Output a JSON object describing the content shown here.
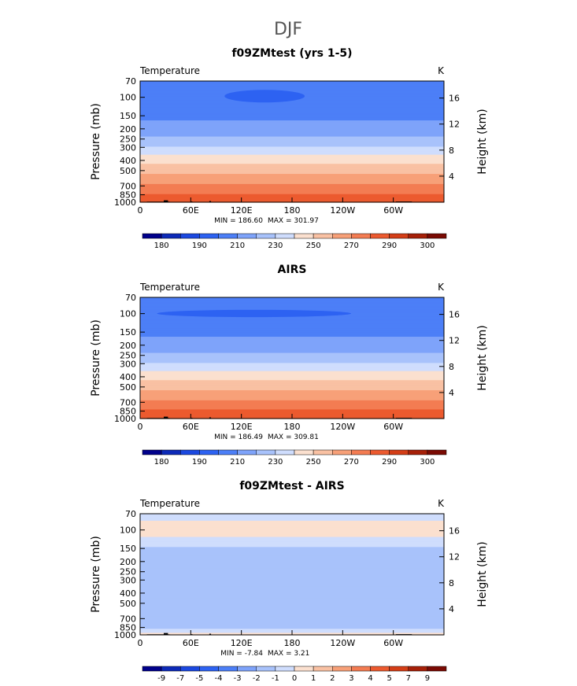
{
  "figure": {
    "title": "DJF"
  },
  "axes": {
    "y_left_label": "Pressure (mb)",
    "y_right_label": "Height (km)",
    "pressure_ticks": [
      "70",
      "100",
      "150",
      "200",
      "250",
      "300",
      "400",
      "500",
      "700",
      "850",
      "1000"
    ],
    "pressure_values": [
      70,
      100,
      150,
      200,
      250,
      300,
      400,
      500,
      700,
      850,
      1000
    ],
    "height_ticks": [
      "16",
      "12",
      "8",
      "4"
    ],
    "height_values": [
      16,
      12,
      8,
      4
    ],
    "lon_ticks": [
      "0",
      "60E",
      "120E",
      "180",
      "120W",
      "60W"
    ],
    "lon_values": [
      0,
      60,
      120,
      180,
      240,
      300
    ],
    "xlim": [
      0,
      360
    ]
  },
  "chart_data": [
    {
      "type": "contour",
      "title": "f09ZMtest (yrs 1-5)",
      "variable": "Temperature",
      "units": "K",
      "min_label": "MIN = 186.60",
      "max_label": "MAX = 301.97",
      "min": 186.6,
      "max": 301.97,
      "levels": [
        180,
        185,
        190,
        200,
        210,
        220,
        230,
        240,
        250,
        260,
        270,
        280,
        290,
        295,
        300
      ],
      "colorbar_labels": [
        "180",
        "190",
        "210",
        "230",
        "250",
        "270",
        "290",
        "300"
      ],
      "profile": [
        {
          "p": 70,
          "t": 205
        },
        {
          "p": 100,
          "t": 203
        },
        {
          "p": 150,
          "t": 208
        },
        {
          "p": 200,
          "t": 214
        },
        {
          "p": 250,
          "t": 222
        },
        {
          "p": 300,
          "t": 231
        },
        {
          "p": 400,
          "t": 246
        },
        {
          "p": 500,
          "t": 257
        },
        {
          "p": 700,
          "t": 272
        },
        {
          "p": 850,
          "t": 281
        },
        {
          "p": 1000,
          "t": 289
        }
      ],
      "cold_pool": {
        "lon_start": 100,
        "lon_end": 195,
        "p_top": 85,
        "p_bottom": 112,
        "t": 193
      }
    },
    {
      "type": "contour",
      "title": "AIRS",
      "variable": "Temperature",
      "units": "K",
      "min_label": "MIN = 186.49",
      "max_label": "MAX = 309.81",
      "min": 186.49,
      "max": 309.81,
      "levels": [
        180,
        185,
        190,
        200,
        210,
        220,
        230,
        240,
        250,
        260,
        270,
        280,
        290,
        295,
        300
      ],
      "colorbar_labels": [
        "180",
        "190",
        "210",
        "230",
        "250",
        "270",
        "290",
        "300"
      ],
      "profile": [
        {
          "p": 70,
          "t": 205
        },
        {
          "p": 100,
          "t": 202
        },
        {
          "p": 150,
          "t": 208
        },
        {
          "p": 200,
          "t": 214
        },
        {
          "p": 250,
          "t": 222
        },
        {
          "p": 300,
          "t": 231
        },
        {
          "p": 400,
          "t": 246
        },
        {
          "p": 500,
          "t": 257
        },
        {
          "p": 700,
          "t": 272
        },
        {
          "p": 850,
          "t": 282
        },
        {
          "p": 1000,
          "t": 290
        }
      ],
      "cold_pool": {
        "lon_start": 20,
        "lon_end": 250,
        "p_top": 92,
        "p_bottom": 108,
        "t": 195
      }
    },
    {
      "type": "contour",
      "title": "f09ZMtest - AIRS",
      "variable": "Temperature",
      "units": "K",
      "min_label": "MIN =   -7.84",
      "max_label": "MAX =    3.21",
      "min": -7.84,
      "max": 3.21,
      "levels": [
        -9,
        -7,
        -5,
        -4,
        -3,
        -2,
        -1,
        0,
        1,
        2,
        3,
        4,
        5,
        7,
        9
      ],
      "colorbar_labels": [
        "-9",
        "-7",
        "-5",
        "-4",
        "-3",
        "-2",
        "-1",
        "0",
        "1",
        "2",
        "3",
        "4",
        "5",
        "7",
        "9"
      ],
      "profile": [
        {
          "p": 70,
          "t": -0.5
        },
        {
          "p": 100,
          "t": 0.6
        },
        {
          "p": 130,
          "t": -0.5
        },
        {
          "p": 150,
          "t": -1.2
        },
        {
          "p": 200,
          "t": -1.5
        },
        {
          "p": 300,
          "t": -1.8
        },
        {
          "p": 400,
          "t": -1.5
        },
        {
          "p": 500,
          "t": -1.3
        },
        {
          "p": 700,
          "t": -1.6
        },
        {
          "p": 850,
          "t": -1.2
        },
        {
          "p": 1000,
          "t": 0.5
        }
      ]
    }
  ],
  "colorbar_colors": [
    "#00008b",
    "#0d2ab8",
    "#1b48e0",
    "#2d62f2",
    "#4c7ff7",
    "#7ea3fa",
    "#a8c2fb",
    "#cfddfd",
    "#fbe0cf",
    "#f9c1a3",
    "#f7a078",
    "#f37c52",
    "#ec5a2f",
    "#d43e17",
    "#a62008",
    "#7a0a03"
  ],
  "topo_color": "#000000"
}
